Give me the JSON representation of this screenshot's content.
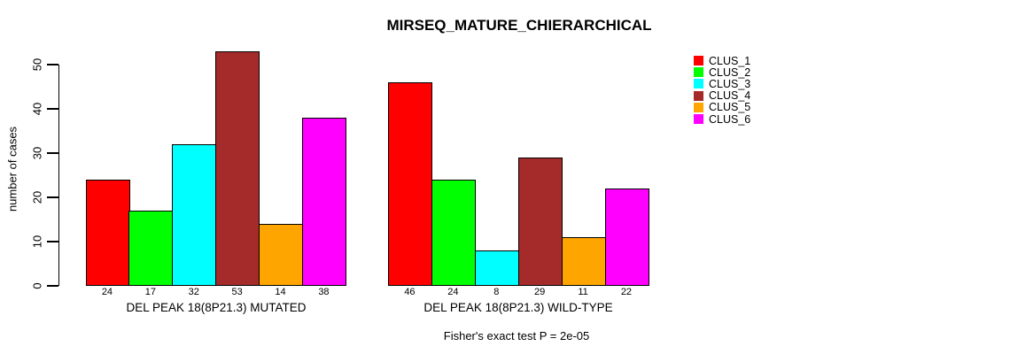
{
  "chart_data": {
    "type": "bar",
    "title": "MIRSEQ_MATURE_CHIERARCHICAL",
    "ylabel": "number of cases",
    "xlabel": "",
    "ylim": [
      0,
      53
    ],
    "yticks": [
      0,
      10,
      20,
      30,
      40,
      50
    ],
    "grid": false,
    "legend_position": "right-outside",
    "show_bar_values": true,
    "categories": [
      "DEL PEAK 18(8P21.3) MUTATED",
      "DEL PEAK 18(8P21.3) WILD-TYPE"
    ],
    "series": [
      {
        "name": "CLUS_1",
        "color": "#FF0000",
        "values": [
          24,
          46
        ]
      },
      {
        "name": "CLUS_2",
        "color": "#00FF00",
        "values": [
          17,
          24
        ]
      },
      {
        "name": "CLUS_3",
        "color": "#00FFFF",
        "values": [
          32,
          8
        ]
      },
      {
        "name": "CLUS_4",
        "color": "#A52A2A",
        "values": [
          53,
          29
        ]
      },
      {
        "name": "CLUS_5",
        "color": "#FFA500",
        "values": [
          14,
          11
        ]
      },
      {
        "name": "CLUS_6",
        "color": "#FF00FF",
        "values": [
          38,
          22
        ]
      }
    ],
    "footnote": "Fisher's exact test P = 2e-05",
    "axis_color": "#000000",
    "bar_border_color": "#000000"
  }
}
